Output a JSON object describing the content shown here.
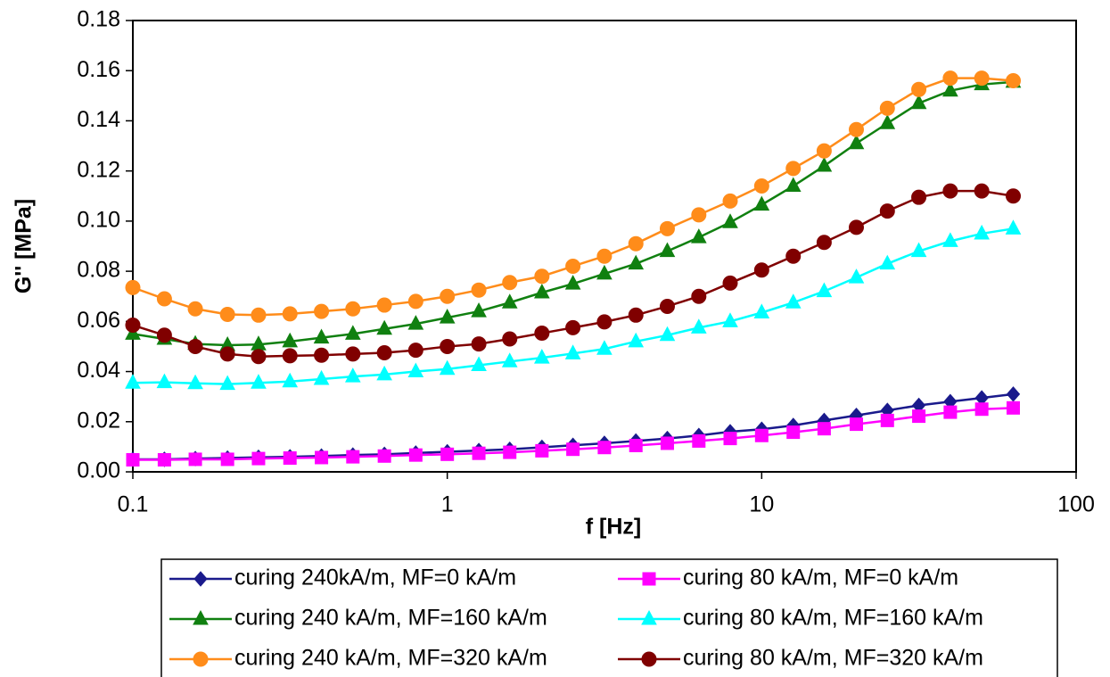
{
  "chart_data": {
    "type": "line",
    "xscale": "log",
    "x_label": "f [Hz]",
    "y_label": "G'' [MPa]",
    "x": [
      0.1,
      0.126,
      0.158,
      0.2,
      0.251,
      0.316,
      0.398,
      0.501,
      0.631,
      0.794,
      1,
      1.26,
      1.58,
      2,
      2.51,
      3.16,
      3.98,
      5.01,
      6.31,
      7.94,
      10,
      12.6,
      15.8,
      20,
      25.1,
      31.6,
      39.8,
      50.1,
      63.1
    ],
    "xlim": [
      0.1,
      100
    ],
    "xticks": [
      0.1,
      1,
      10,
      100
    ],
    "ylim": [
      0,
      0.18
    ],
    "yticks": [
      {
        "value": 0,
        "label": "0.00"
      },
      0.02,
      0.04,
      0.06,
      0.08,
      {
        "value": 0.1,
        "label": "0.10"
      },
      0.12,
      0.14,
      0.16,
      0.18
    ],
    "grid": false,
    "series": [
      {
        "name": "curing 240kA/m, MF=0 kA/m",
        "color": "#1a1a8c",
        "marker": "diamond",
        "values": [
          0.005,
          0.005,
          0.0053,
          0.0055,
          0.0058,
          0.006,
          0.0063,
          0.0067,
          0.007,
          0.0075,
          0.008,
          0.0085,
          0.009,
          0.0098,
          0.0106,
          0.0114,
          0.0123,
          0.0133,
          0.0145,
          0.016,
          0.017,
          0.0185,
          0.0205,
          0.0225,
          0.0245,
          0.0265,
          0.028,
          0.0295,
          0.031
        ]
      },
      {
        "name": "curing 80 kA/m, MF=0 kA/m",
        "color": "#ff00ff",
        "marker": "square",
        "values": [
          0.0048,
          0.0048,
          0.005,
          0.005,
          0.0053,
          0.0055,
          0.0057,
          0.006,
          0.0063,
          0.0067,
          0.007,
          0.0074,
          0.0078,
          0.0084,
          0.009,
          0.0097,
          0.0105,
          0.0114,
          0.0123,
          0.0133,
          0.0145,
          0.0158,
          0.0172,
          0.019,
          0.0205,
          0.0222,
          0.0238,
          0.025,
          0.0255
        ]
      },
      {
        "name": "curing 240 kA/m, MF=160 kA/m",
        "color": "#108010",
        "marker": "triangle",
        "values": [
          0.055,
          0.053,
          0.051,
          0.0505,
          0.0508,
          0.052,
          0.0535,
          0.055,
          0.057,
          0.059,
          0.0615,
          0.064,
          0.0675,
          0.0715,
          0.075,
          0.079,
          0.083,
          0.088,
          0.0935,
          0.0995,
          0.1065,
          0.114,
          0.122,
          0.131,
          0.139,
          0.147,
          0.152,
          0.1545,
          0.1555
        ]
      },
      {
        "name": "curing 80 kA/m, MF=160 kA/m",
        "color": "#00ffff",
        "marker": "triangle",
        "values": [
          0.0355,
          0.0357,
          0.0353,
          0.035,
          0.0355,
          0.036,
          0.037,
          0.038,
          0.0388,
          0.04,
          0.041,
          0.0425,
          0.044,
          0.0455,
          0.0472,
          0.049,
          0.052,
          0.0545,
          0.0575,
          0.06,
          0.0635,
          0.0675,
          0.072,
          0.0775,
          0.083,
          0.088,
          0.092,
          0.095,
          0.097
        ]
      },
      {
        "name": "curing 240 kA/m, MF=320 kA/m",
        "color": "#ff8c1a",
        "marker": "circle",
        "values": [
          0.0735,
          0.069,
          0.065,
          0.0628,
          0.0625,
          0.063,
          0.064,
          0.065,
          0.0665,
          0.068,
          0.07,
          0.0725,
          0.0755,
          0.078,
          0.082,
          0.086,
          0.091,
          0.097,
          0.1025,
          0.108,
          0.114,
          0.121,
          0.128,
          0.1365,
          0.145,
          0.1525,
          0.157,
          0.157,
          0.156
        ]
      },
      {
        "name": "curing 80 kA/m, MF=320 kA/m",
        "color": "#800000",
        "marker": "circle",
        "values": [
          0.0585,
          0.0545,
          0.05,
          0.047,
          0.046,
          0.0463,
          0.0465,
          0.047,
          0.0475,
          0.0485,
          0.05,
          0.051,
          0.053,
          0.0553,
          0.0575,
          0.0598,
          0.0625,
          0.066,
          0.07,
          0.0753,
          0.0805,
          0.086,
          0.0915,
          0.0975,
          0.104,
          0.1095,
          0.112,
          0.112,
          0.11
        ]
      }
    ]
  }
}
